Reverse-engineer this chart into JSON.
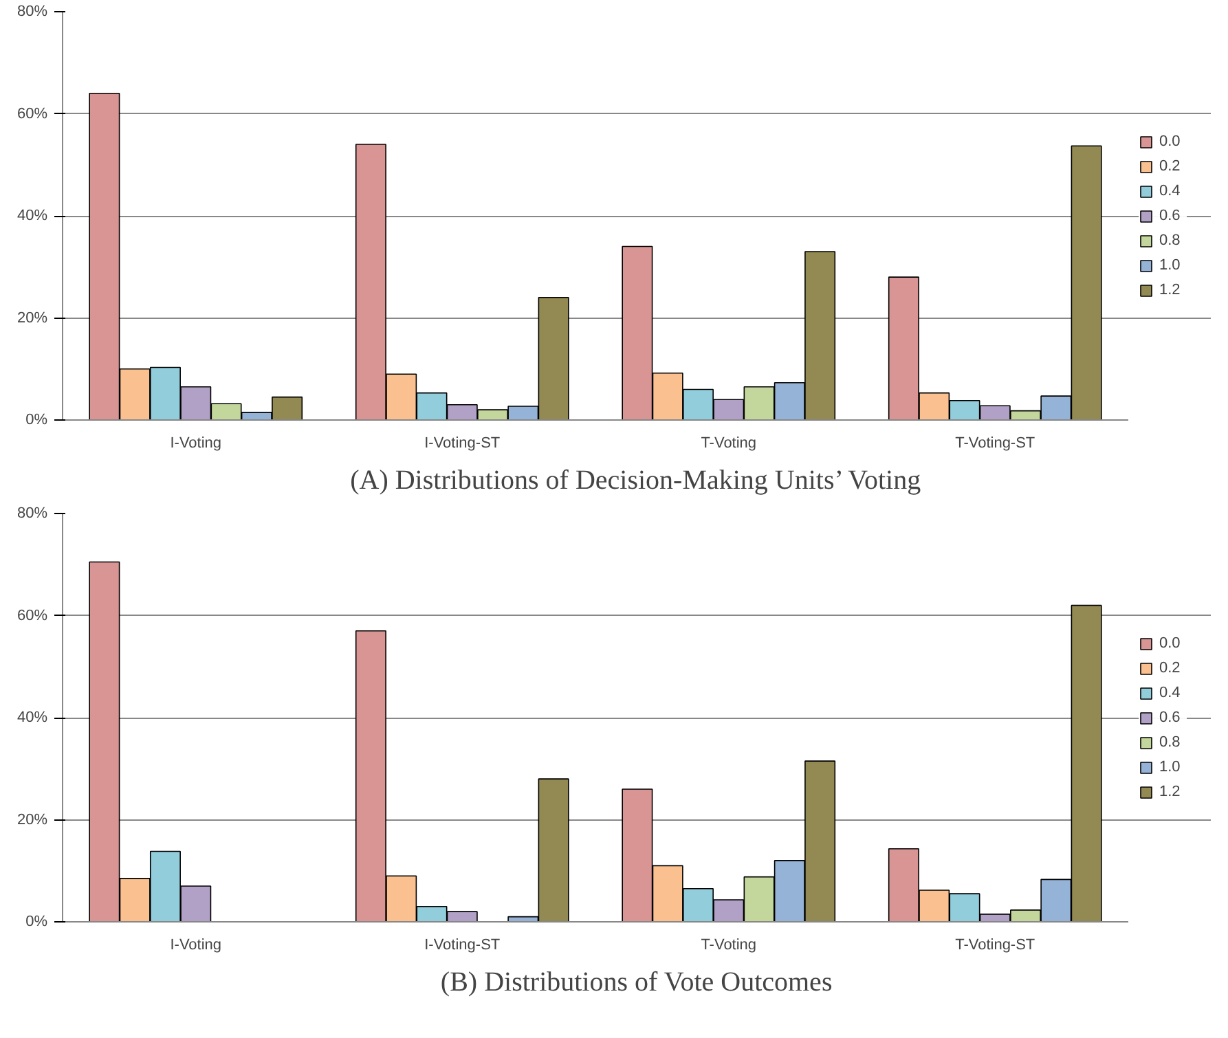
{
  "chart_data": [
    {
      "type": "bar",
      "title": "(A) Distributions of Decision-Making Units’ Voting",
      "categories": [
        "I-Voting",
        "I-Voting-ST",
        "T-Voting",
        "T-Voting-ST"
      ],
      "series": [
        {
          "name": "0.0",
          "color": "#d99594",
          "values": [
            64,
            54,
            34,
            28
          ]
        },
        {
          "name": "0.2",
          "color": "#fac08f",
          "values": [
            10,
            9,
            9.2,
            5.3
          ]
        },
        {
          "name": "0.4",
          "color": "#92cddc",
          "values": [
            10.3,
            5.3,
            6,
            3.8
          ]
        },
        {
          "name": "0.6",
          "color": "#b2a1c7",
          "values": [
            6.5,
            3,
            4,
            2.8
          ]
        },
        {
          "name": "0.8",
          "color": "#c3d69b",
          "values": [
            3.2,
            2,
            6.5,
            1.8
          ]
        },
        {
          "name": "1.0",
          "color": "#95b3d7",
          "values": [
            1.5,
            2.7,
            7.3,
            4.7
          ]
        },
        {
          "name": "1.2",
          "color": "#938953",
          "values": [
            4.5,
            24,
            33,
            53.7
          ]
        }
      ],
      "ylim": [
        0,
        80
      ],
      "yticks": [
        {
          "value": 0,
          "label": "0%"
        },
        {
          "value": 20,
          "label": "20%"
        },
        {
          "value": 40,
          "label": "40%"
        },
        {
          "value": 60,
          "label": "60%"
        },
        {
          "value": 80,
          "label": "80%"
        }
      ],
      "grid": "y",
      "legend": "right"
    },
    {
      "type": "bar",
      "title": "(B) Distributions of Vote Outcomes",
      "categories": [
        "I-Voting",
        "I-Voting-ST",
        "T-Voting",
        "T-Voting-ST"
      ],
      "series": [
        {
          "name": "0.0",
          "color": "#d99594",
          "values": [
            70.5,
            57,
            26,
            14.3
          ]
        },
        {
          "name": "0.2",
          "color": "#fac08f",
          "values": [
            8.5,
            9,
            11,
            6.2
          ]
        },
        {
          "name": "0.4",
          "color": "#92cddc",
          "values": [
            13.8,
            3,
            6.5,
            5.5
          ]
        },
        {
          "name": "0.6",
          "color": "#b2a1c7",
          "values": [
            7,
            2,
            4.3,
            1.5
          ]
        },
        {
          "name": "0.8",
          "color": "#c3d69b",
          "values": [
            null,
            null,
            8.8,
            2.3
          ]
        },
        {
          "name": "1.0",
          "color": "#95b3d7",
          "values": [
            null,
            1,
            12,
            8.3
          ]
        },
        {
          "name": "1.2",
          "color": "#938953",
          "values": [
            null,
            28,
            31.5,
            62
          ]
        }
      ],
      "ylim": [
        0,
        80
      ],
      "yticks": [
        {
          "value": 0,
          "label": "0%"
        },
        {
          "value": 20,
          "label": "20%"
        },
        {
          "value": 40,
          "label": "40%"
        },
        {
          "value": 60,
          "label": "60%"
        },
        {
          "value": 80,
          "label": "80%"
        }
      ],
      "grid": "y",
      "legend": "right"
    }
  ]
}
